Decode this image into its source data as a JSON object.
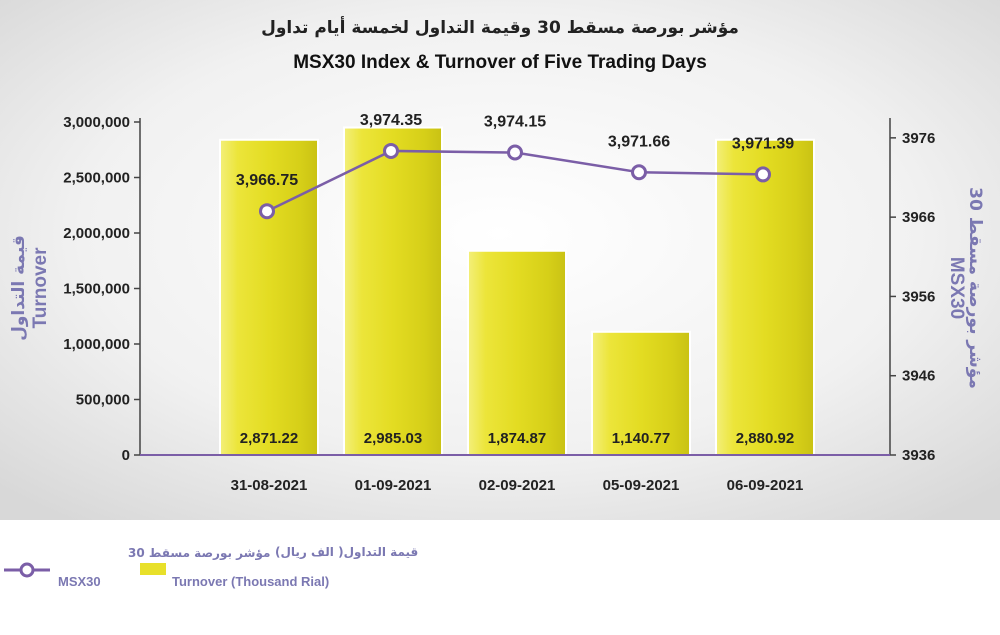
{
  "chart_data": {
    "type": "bar",
    "title_ar": "مؤشر بورصة مسقط 30 وقيمة التداول لخمسة أيام تداول",
    "title": "MSX30 Index & Turnover of Five Trading Days",
    "categories": [
      "31-08-2021",
      "01-09-2021",
      "02-09-2021",
      "05-09-2021",
      "06-09-2021"
    ],
    "series": [
      {
        "name": "Turnover (Thousand Rial)",
        "name_ar": "قيمة التداول( الف ريال)",
        "type": "bar",
        "axis": "left",
        "color": "#e8e02a",
        "values": [
          2871.22,
          2985.03,
          1874.87,
          1140.77,
          2880.92
        ],
        "labels": [
          "2,871.22",
          "2,985.03",
          "1,874.87",
          "1,140.77",
          "2,880.92"
        ]
      },
      {
        "name": "MSX30",
        "name_ar": "مؤشر بورصة مسقط 30",
        "type": "line",
        "axis": "right",
        "color": "#7b5ea7",
        "values": [
          3966.75,
          3974.35,
          3974.15,
          3971.66,
          3971.39
        ],
        "labels": [
          "3,966.75",
          "3,974.35",
          "3,974.15",
          "3,971.66",
          "3,971.39"
        ]
      }
    ],
    "y_left": {
      "label": "Turnover",
      "label_ar": "قيمة التداول",
      "ylim": [
        0,
        3000000
      ],
      "ticks": [
        0,
        500000,
        1000000,
        1500000,
        2000000,
        2500000,
        3000000
      ],
      "tick_labels": [
        "0",
        "500,000",
        "1,000,000",
        "1,500,000",
        "2,000,000",
        "2,500,000",
        "3,000,000"
      ]
    },
    "y_right": {
      "label": "MSX30",
      "label_ar": "مؤشر بورصة مسقط 30",
      "ylim": [
        3936,
        3978
      ],
      "ticks": [
        3936,
        3946,
        3956,
        3966,
        3976
      ],
      "tick_labels": [
        "3936",
        "3946",
        "3956",
        "3966",
        "3976"
      ]
    },
    "bar_display_values": [
      2840000,
      2950000,
      1840000,
      1110000,
      2840000
    ],
    "grid": false,
    "legend": "bottom-left"
  }
}
